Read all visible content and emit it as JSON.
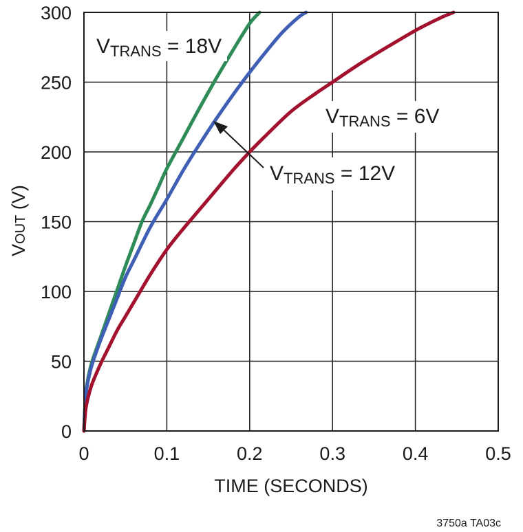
{
  "chart_data": {
    "type": "line",
    "xlabel": "TIME (SECONDS)",
    "ylabel": {
      "main": "V",
      "sub": "OUT",
      "rest": " (V)"
    },
    "xlim": [
      0,
      0.5
    ],
    "ylim": [
      0,
      300
    ],
    "x_ticks": [
      0,
      0.1,
      0.2,
      0.3,
      0.4,
      0.5
    ],
    "x_tick_labels": [
      "0",
      "0.1",
      "0.2",
      "0.3",
      "0.4",
      "0.5"
    ],
    "y_ticks": [
      0,
      50,
      100,
      150,
      200,
      250,
      300
    ],
    "y_tick_labels": [
      "0",
      "50",
      "100",
      "150",
      "200",
      "250",
      "300"
    ],
    "grid": true,
    "series": [
      {
        "name": "VTRANS = 18V",
        "color": "#2e8b57",
        "x": [
          0,
          0.002,
          0.005,
          0.01,
          0.02,
          0.03,
          0.04,
          0.05,
          0.06,
          0.07,
          0.08,
          0.09,
          0.1,
          0.12,
          0.14,
          0.16,
          0.18,
          0.2,
          0.212
        ],
        "y": [
          0,
          25,
          38,
          50,
          67,
          84,
          101,
          118,
          134,
          150,
          162,
          175,
          188,
          210,
          232,
          253,
          273,
          292,
          300
        ]
      },
      {
        "name": "VTRANS = 12V",
        "color": "#3f5fb5",
        "x": [
          0,
          0.002,
          0.005,
          0.01,
          0.02,
          0.03,
          0.04,
          0.05,
          0.06,
          0.08,
          0.1,
          0.12,
          0.14,
          0.16,
          0.18,
          0.2,
          0.22,
          0.24,
          0.26,
          0.268
        ],
        "y": [
          0,
          24,
          36,
          48,
          65,
          80,
          95,
          110,
          122,
          146,
          166,
          187,
          206,
          224,
          241,
          257,
          272,
          286,
          297,
          300
        ]
      },
      {
        "name": "VTRANS = 6V",
        "color": "#a2122f",
        "x": [
          0,
          0.002,
          0.005,
          0.01,
          0.02,
          0.03,
          0.04,
          0.05,
          0.06,
          0.08,
          0.1,
          0.12,
          0.15,
          0.18,
          0.2,
          0.22,
          0.25,
          0.28,
          0.3,
          0.33,
          0.36,
          0.4,
          0.43,
          0.446
        ],
        "y": [
          0,
          15,
          24,
          34,
          48,
          60,
          72,
          82,
          92,
          112,
          130,
          145,
          166,
          187,
          200,
          212,
          229,
          242,
          250,
          262,
          273,
          287,
          296,
          300
        ]
      }
    ],
    "annotations": [
      {
        "v": "V",
        "sub": "TRANS",
        "rest": " = 18V",
        "series": 0
      },
      {
        "v": "V",
        "sub": "TRANS",
        "rest": " = 6V",
        "series": 2
      },
      {
        "v": "V",
        "sub": "TRANS",
        "rest": " = 12V",
        "series": 1,
        "arrow": true
      }
    ],
    "footnote": "3750a TA03c"
  }
}
